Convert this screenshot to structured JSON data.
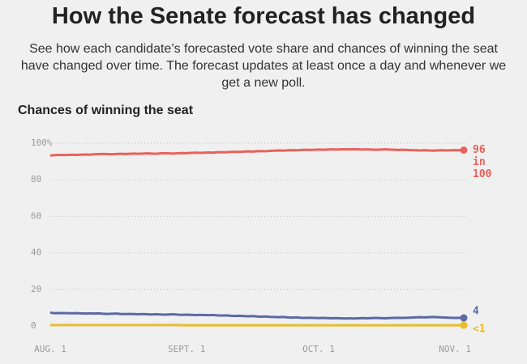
{
  "chart_data": {
    "type": "line",
    "title": "How the Senate forecast has changed",
    "subtitle": "See how each candidate’s forecasted vote share and chances of winning the seat have changed over time. The forecast updates at least once a day and whenever we get a new poll.",
    "chart_title": "Chances of winning the seat",
    "ylim": [
      0,
      100
    ],
    "yticks": [
      0,
      20,
      40,
      60,
      80,
      {
        "value": 100,
        "label": "100%"
      }
    ],
    "grid": true,
    "categories": [
      "AUG. 1",
      null,
      null,
      null,
      null,
      null,
      null,
      null,
      null,
      null,
      null,
      null,
      null,
      null,
      null,
      null,
      null,
      null,
      null,
      null,
      null,
      null,
      null,
      null,
      null,
      null,
      null,
      null,
      null,
      null,
      null,
      "SEPT. 1",
      null,
      null,
      null,
      null,
      null,
      null,
      null,
      null,
      null,
      null,
      null,
      null,
      null,
      null,
      null,
      null,
      null,
      null,
      null,
      null,
      null,
      null,
      null,
      null,
      null,
      null,
      null,
      null,
      null,
      "OCT. 1",
      null,
      null,
      null,
      null,
      null,
      null,
      null,
      null,
      null,
      null,
      null,
      null,
      null,
      null,
      null,
      null,
      null,
      null,
      null,
      null,
      null,
      null,
      null,
      null,
      null,
      null,
      null,
      null,
      null,
      null,
      "NOV. 1",
      null,
      null
    ],
    "series": [
      {
        "color": "#e9615b",
        "end_label": [
          "96",
          "in",
          "100"
        ],
        "values": [
          93.2,
          93.5,
          93.6,
          93.5,
          93.6,
          93.7,
          93.6,
          93.7,
          93.8,
          93.7,
          93.9,
          94.0,
          94.1,
          94.0,
          93.9,
          94.1,
          94.2,
          94.1,
          94.2,
          94.3,
          94.2,
          94.3,
          94.4,
          94.3,
          94.2,
          94.4,
          94.5,
          94.4,
          94.3,
          94.5,
          94.6,
          94.5,
          94.7,
          94.8,
          94.7,
          94.8,
          94.9,
          94.8,
          95.0,
          95.1,
          95.0,
          95.2,
          95.3,
          95.2,
          95.4,
          95.5,
          95.4,
          95.6,
          95.7,
          95.6,
          95.8,
          95.9,
          96.0,
          95.9,
          96.1,
          96.2,
          96.1,
          96.3,
          96.4,
          96.3,
          96.4,
          96.5,
          96.4,
          96.5,
          96.6,
          96.5,
          96.6,
          96.7,
          96.6,
          96.7,
          96.6,
          96.5,
          96.6,
          96.5,
          96.4,
          96.5,
          96.6,
          96.5,
          96.4,
          96.3,
          96.4,
          96.3,
          96.2,
          96.1,
          96.0,
          96.1,
          96.0,
          95.9,
          96.0,
          96.1,
          96.0,
          96.1,
          96.2,
          96.1,
          96.2
        ]
      },
      {
        "color": "#5b6aa6",
        "end_label": [
          "4"
        ],
        "values": [
          7.3,
          7.0,
          7.1,
          7.0,
          7.0,
          6.9,
          7.0,
          6.9,
          6.8,
          6.9,
          6.8,
          6.9,
          6.7,
          6.6,
          6.7,
          6.8,
          6.6,
          6.5,
          6.6,
          6.5,
          6.4,
          6.5,
          6.4,
          6.3,
          6.4,
          6.3,
          6.2,
          6.3,
          6.4,
          6.2,
          6.1,
          6.2,
          6.1,
          6.0,
          6.1,
          6.0,
          5.9,
          6.0,
          5.8,
          5.7,
          5.8,
          5.6,
          5.5,
          5.6,
          5.4,
          5.3,
          5.4,
          5.2,
          5.1,
          5.2,
          5.0,
          4.9,
          4.8,
          4.9,
          4.7,
          4.6,
          4.7,
          4.5,
          4.4,
          4.5,
          4.4,
          4.3,
          4.4,
          4.3,
          4.2,
          4.3,
          4.2,
          4.1,
          4.2,
          4.1,
          4.2,
          4.3,
          4.2,
          4.3,
          4.4,
          4.3,
          4.2,
          4.3,
          4.4,
          4.5,
          4.4,
          4.5,
          4.6,
          4.7,
          4.8,
          4.7,
          4.8,
          4.9,
          4.8,
          4.7,
          4.6,
          4.5,
          4.4,
          4.5,
          4.4
        ]
      },
      {
        "color": "#e8bd2a",
        "end_label": [
          "<1"
        ],
        "values": [
          0.5,
          0.5,
          0.5,
          0.5,
          0.5,
          0.5,
          0.5,
          0.5,
          0.5,
          0.5,
          0.5,
          0.5,
          0.5,
          0.5,
          0.5,
          0.5,
          0.5,
          0.5,
          0.5,
          0.5,
          0.5,
          0.5,
          0.5,
          0.5,
          0.5,
          0.5,
          0.5,
          0.5,
          0.5,
          0.5,
          0.4,
          0.4,
          0.4,
          0.4,
          0.4,
          0.4,
          0.4,
          0.4,
          0.4,
          0.4,
          0.4,
          0.4,
          0.4,
          0.4,
          0.4,
          0.4,
          0.4,
          0.4,
          0.4,
          0.4,
          0.4,
          0.4,
          0.4,
          0.4,
          0.4,
          0.4,
          0.4,
          0.4,
          0.4,
          0.4,
          0.4,
          0.4,
          0.4,
          0.4,
          0.4,
          0.4,
          0.4,
          0.4,
          0.4,
          0.4,
          0.4,
          0.4,
          0.4,
          0.4,
          0.4,
          0.4,
          0.4,
          0.4,
          0.4,
          0.4,
          0.4,
          0.4,
          0.4,
          0.4,
          0.4,
          0.4,
          0.4,
          0.4,
          0.4,
          0.4,
          0.4,
          0.4,
          0.4,
          0.4,
          0.4
        ]
      }
    ]
  }
}
